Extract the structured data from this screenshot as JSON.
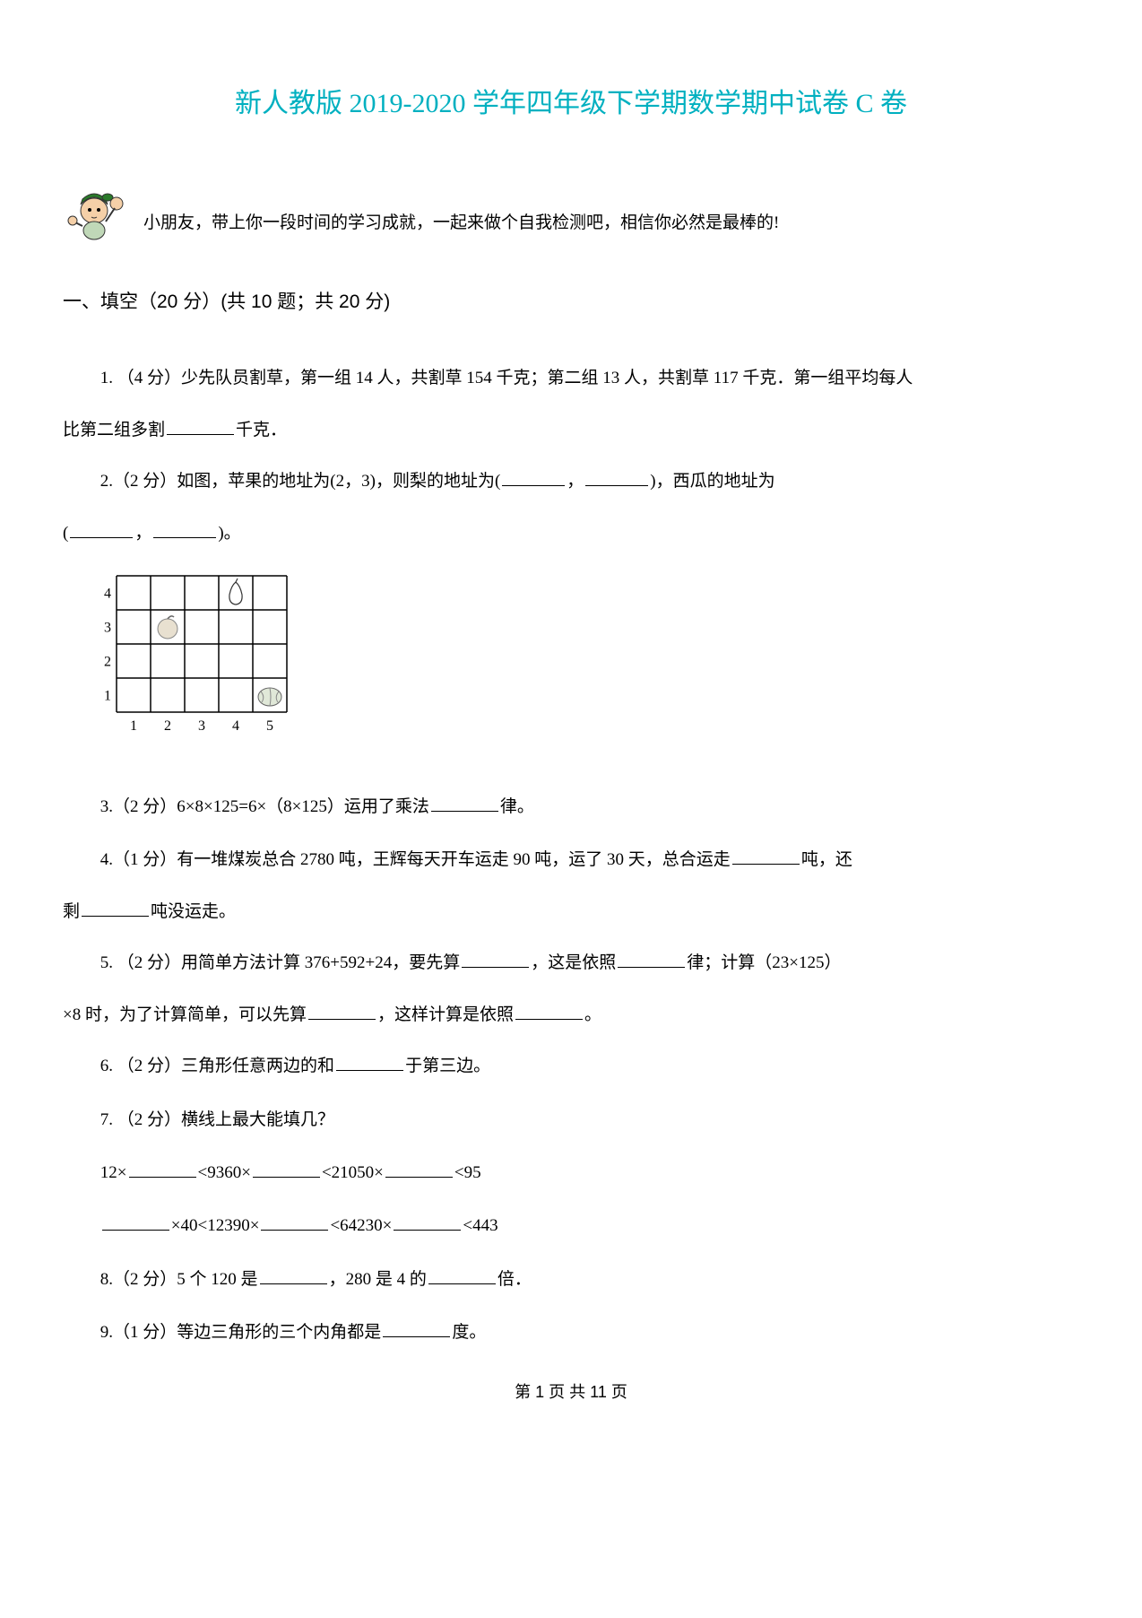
{
  "title": "新人教版 2019-2020 学年四年级下学期数学期中试卷 C 卷",
  "intro": "小朋友，带上你一段时间的学习成就，一起来做个自我检测吧，相信你必然是最棒的!",
  "section_header": "一、填空（20 分）(共 10 题；共 20 分)",
  "q1_a": "1.  （4 分）少先队员割草，第一组 14 人，共割草 154 千克；第二组 13 人，共割草 117 千克．第一组平均每人",
  "q1_b": "比第二组多割",
  "q1_c": "千克．",
  "q2_a": "2.（2 分）如图，苹果的地址为(2，3)，则梨的地址为(",
  "q2_b": "，",
  "q2_c": ")，西瓜的地址为",
  "q2_d": "(",
  "q2_e": "，",
  "q2_f": ")。",
  "q3_a": "3.（2 分）6×8×125=6×（8×125）运用了乘法",
  "q3_b": "律。",
  "q4_a": "4.（1 分）有一堆煤炭总合 2780 吨，王辉每天开车运走 90 吨，运了 30 天，总合运走",
  "q4_b": "吨，还",
  "q4_c": "剩",
  "q4_d": "吨没运走。",
  "q5_a": "5.  （2 分）用简单方法计算 376+592+24，要先算",
  "q5_b": "，这是依照",
  "q5_c": "律；计算（23×125）",
  "q5_d": "×8 时，为了计算简单，可以先算",
  "q5_e": "，这样计算是依照",
  "q5_f": "。",
  "q6_a": "6.  （2 分）三角形任意两边的和",
  "q6_b": "于第三边。",
  "q7": "7.  （2 分）横线上最大能填几？",
  "q7_line1_a": "12×",
  "q7_line1_b": "<9360×",
  "q7_line1_c": "<21050×",
  "q7_line1_d": "<95",
  "q7_line2_a": "×40<12390×",
  "q7_line2_b": "<64230×",
  "q7_line2_c": "<443",
  "q8_a": "8.（2 分）5 个 120 是",
  "q8_b": "，280 是 4 的",
  "q8_c": "倍．",
  "q9_a": "9.（1 分）等边三角形的三个内角都是",
  "q9_b": "度。",
  "footer": "第 1 页 共 11 页",
  "grid": {
    "rows": [
      4,
      3,
      2,
      1
    ],
    "cols": [
      1,
      2,
      3,
      4,
      5
    ],
    "cell_size": 38,
    "line_color": "#000000",
    "apple_pos": {
      "col": 2,
      "row": 3
    },
    "pear_pos": {
      "col": 4,
      "row": 4
    },
    "watermelon_pos": {
      "col": 5,
      "row": 1
    }
  },
  "cartoon": {
    "hat_color": "#2a7a2a",
    "skin_color": "#f5d0a8",
    "body_color": "#c0d8b8"
  }
}
